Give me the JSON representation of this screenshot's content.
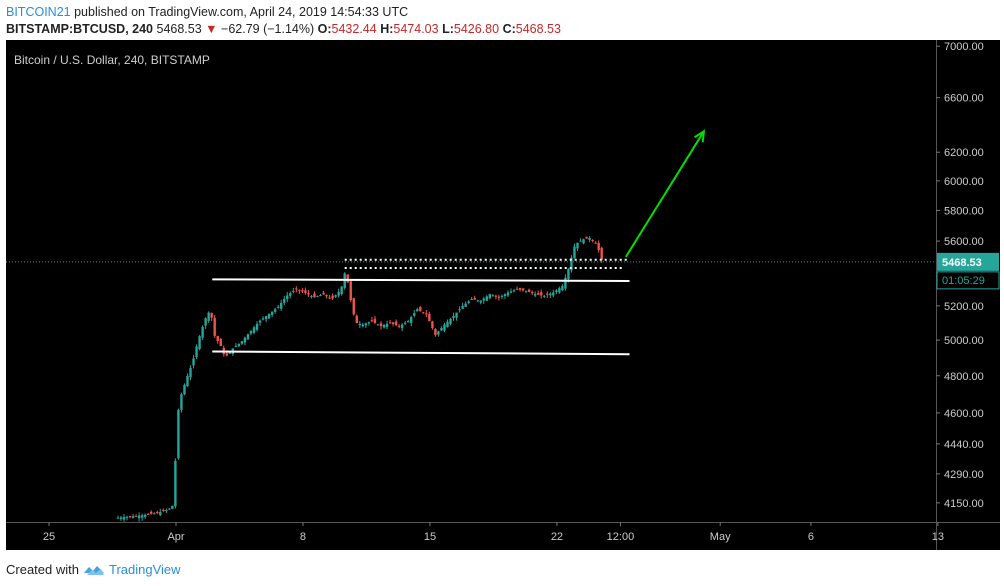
{
  "header": {
    "user": "BITCOIN21",
    "published": "published on TradingView.com, April 24, 2019 14:54:33 UTC",
    "symbol": "BITSTAMP:BTCUSD, 240",
    "price": "5468.53",
    "change_arrow": "▼",
    "change": "−62.79 (−1.14%)",
    "o_label": "O:",
    "o_value": "5432.44",
    "h_label": "H:",
    "h_value": "5474.03",
    "l_label": "L:",
    "l_value": "5426.80",
    "c_label": "C:",
    "c_value": "5468.53"
  },
  "chart_data": {
    "type": "candlestick",
    "title": "Bitcoin / U.S. Dollar, 240, BITSTAMP",
    "y_axis_ticks": [
      "7000.00",
      "6600.00",
      "6200.00",
      "6000.00",
      "5800.00",
      "5600.00",
      "5200.00",
      "5000.00",
      "4800.00",
      "4600.00",
      "4440.00",
      "4290.00",
      "4150.00"
    ],
    "y_axis_scale": "log",
    "ylim": [
      4060,
      7050
    ],
    "x_axis_ticks": [
      {
        "label": "25",
        "day": -6
      },
      {
        "label": "Apr",
        "day": 1
      },
      {
        "label": "8",
        "day": 8
      },
      {
        "label": "15",
        "day": 15
      },
      {
        "label": "22",
        "day": 22
      },
      {
        "label": "12:00",
        "day": 25.5
      },
      {
        "label": "May",
        "day": 31
      },
      {
        "label": "6",
        "day": 36
      },
      {
        "label": "13",
        "day": 43
      }
    ],
    "last_price": "5468.53",
    "countdown": "01:05:29",
    "close_path": [
      [
        -2.2,
        4080
      ],
      [
        -1.5,
        4086
      ],
      [
        -0.8,
        4092
      ],
      [
        0,
        4103
      ],
      [
        0.6,
        4120
      ],
      [
        0.85,
        4140
      ],
      [
        1.1,
        4600
      ],
      [
        1.3,
        4700
      ],
      [
        1.6,
        4790
      ],
      [
        1.9,
        4870
      ],
      [
        2.2,
        4990
      ],
      [
        2.6,
        5120
      ],
      [
        2.9,
        5180
      ],
      [
        3.1,
        5030
      ],
      [
        3.5,
        4960
      ],
      [
        3.7,
        4900
      ],
      [
        4.1,
        4950
      ],
      [
        4.6,
        4990
      ],
      [
        5.1,
        5050
      ],
      [
        5.6,
        5110
      ],
      [
        6.1,
        5150
      ],
      [
        6.6,
        5190
      ],
      [
        7.1,
        5260
      ],
      [
        7.6,
        5300
      ],
      [
        8.1,
        5280
      ],
      [
        8.6,
        5250
      ],
      [
        9.1,
        5270
      ],
      [
        9.6,
        5240
      ],
      [
        10.1,
        5300
      ],
      [
        10.35,
        5420
      ],
      [
        10.6,
        5250
      ],
      [
        10.9,
        5100
      ],
      [
        11.3,
        5090
      ],
      [
        11.8,
        5110
      ],
      [
        12.3,
        5080
      ],
      [
        12.8,
        5100
      ],
      [
        13.3,
        5080
      ],
      [
        13.8,
        5110
      ],
      [
        14.3,
        5180
      ],
      [
        14.8,
        5150
      ],
      [
        15.3,
        5030
      ],
      [
        15.8,
        5090
      ],
      [
        16.3,
        5140
      ],
      [
        16.8,
        5200
      ],
      [
        17.3,
        5240
      ],
      [
        17.8,
        5230
      ],
      [
        18.3,
        5270
      ],
      [
        18.8,
        5250
      ],
      [
        19.3,
        5280
      ],
      [
        19.8,
        5300
      ],
      [
        20.3,
        5290
      ],
      [
        20.8,
        5270
      ],
      [
        21.3,
        5260
      ],
      [
        21.8,
        5280
      ],
      [
        22.3,
        5320
      ],
      [
        22.6,
        5410
      ],
      [
        23.0,
        5580
      ],
      [
        23.4,
        5610
      ],
      [
        23.8,
        5620
      ],
      [
        24.2,
        5580
      ],
      [
        24.5,
        5468.53
      ]
    ],
    "annotations": {
      "channel_upper": {
        "x1": 3,
        "y1": 5360,
        "x2": 26,
        "y2": 5350
      },
      "channel_lower": {
        "x1": 3,
        "y1": 4935,
        "x2": 26,
        "y2": 4920
      },
      "dotted_top": {
        "x1": 10.3,
        "y1": 5482,
        "x2": 26,
        "y2": 5482
      },
      "dotted_bottom": {
        "x1": 10.3,
        "y1": 5430,
        "x2": 25.7,
        "y2": 5430
      },
      "arrow": {
        "x1": 25.8,
        "y1": 5500,
        "x2": 30.1,
        "y2": 6350
      }
    },
    "colors": {
      "up": "#26a69a",
      "down": "#ef5350",
      "background": "#000000",
      "arrow": "#00e000",
      "line": "#ffffff",
      "label_bg": "#26a69a"
    }
  },
  "footer": {
    "created_with": "Created with",
    "brand": "TradingView"
  }
}
